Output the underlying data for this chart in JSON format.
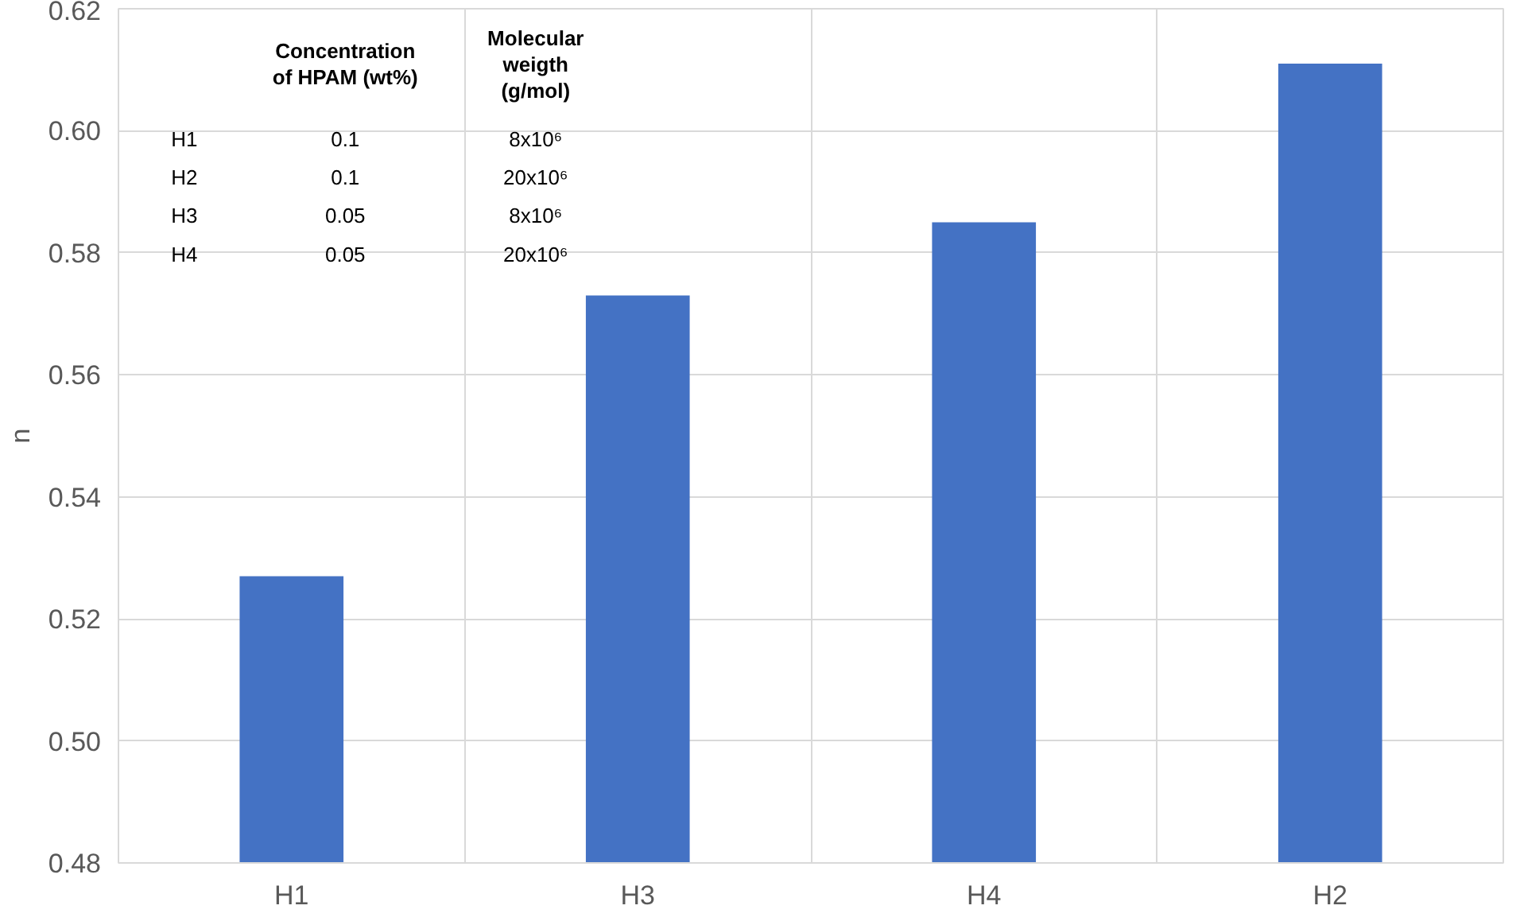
{
  "chart_data": {
    "type": "bar",
    "ylabel": "n",
    "categories": [
      "H1",
      "H3",
      "H4",
      "H2"
    ],
    "values": [
      0.527,
      0.573,
      0.585,
      0.611
    ],
    "color": "#4472c4",
    "ylim": [
      0.48,
      0.62
    ],
    "yticks": [
      {
        "value": 0.48,
        "label": "0.48"
      },
      {
        "value": 0.5,
        "label": "0.50"
      },
      {
        "value": 0.52,
        "label": "0.52"
      },
      {
        "value": 0.54,
        "label": "0.54"
      },
      {
        "value": 0.56,
        "label": "0.56"
      },
      {
        "value": 0.58,
        "label": "0.58"
      },
      {
        "value": 0.6,
        "label": "0.60"
      },
      {
        "value": 0.62,
        "label": "0.62"
      }
    ],
    "grid": true,
    "annotations": [
      "Concentration of HPAM (wt%)",
      "Molecular weigth (g/mol)",
      "H1",
      "0.1",
      "8x10⁶",
      "H2",
      "0.1",
      "20x10⁶",
      "H3",
      "0.05",
      "8x10⁶",
      "H4",
      "0.05",
      "20x10⁶"
    ]
  }
}
